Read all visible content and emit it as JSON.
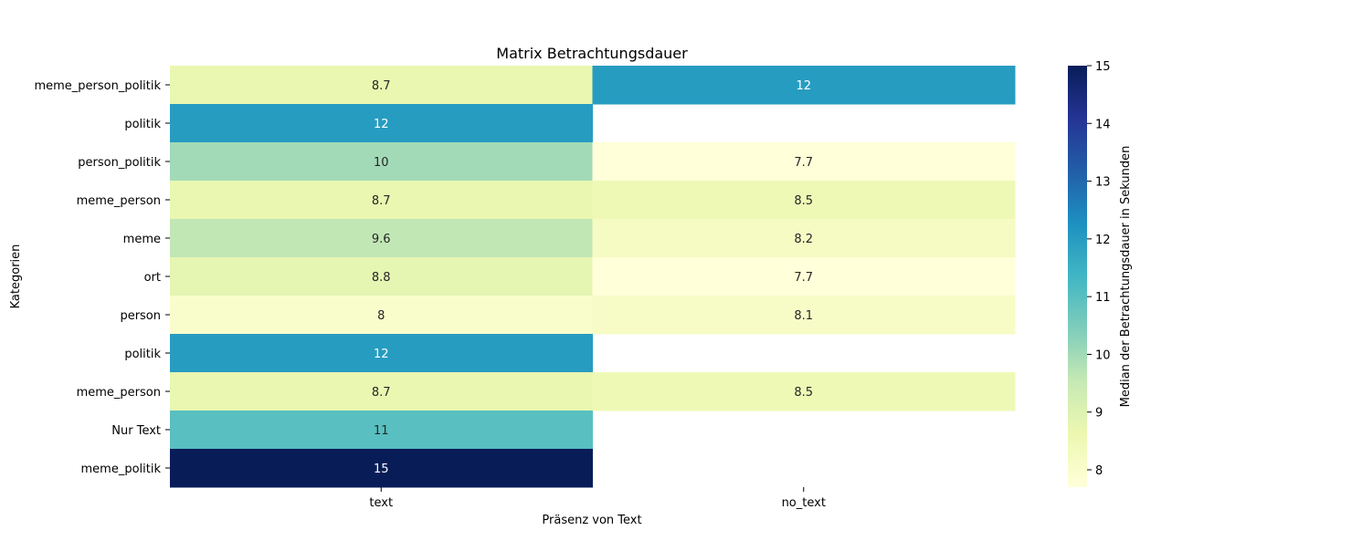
{
  "chart_data": {
    "type": "heatmap",
    "title": "Matrix Betrachtungsdauer",
    "xlabel": "Präsenz von Text",
    "ylabel": "Kategorien",
    "columns": [
      "text",
      "no_text"
    ],
    "rows": [
      "meme_person_politik",
      "politik",
      "person_politik",
      "meme_person",
      "meme",
      "ort",
      "person",
      "politik",
      "meme_person",
      "Nur Text",
      "meme_politik"
    ],
    "values": [
      [
        8.7,
        12
      ],
      [
        12,
        null
      ],
      [
        10,
        7.7
      ],
      [
        8.7,
        8.5
      ],
      [
        9.6,
        8.2
      ],
      [
        8.8,
        7.7
      ],
      [
        8,
        8.1
      ],
      [
        12,
        null
      ],
      [
        8.7,
        8.5
      ],
      [
        11,
        null
      ],
      [
        15,
        null
      ]
    ],
    "colorbar": {
      "label": "Median der Betrachtungsdauer in Sekunden",
      "min": 7.7,
      "max": 15,
      "ticks": [
        8,
        9,
        10,
        11,
        12,
        13,
        14,
        15
      ],
      "colormap": "YlGnBu"
    }
  }
}
